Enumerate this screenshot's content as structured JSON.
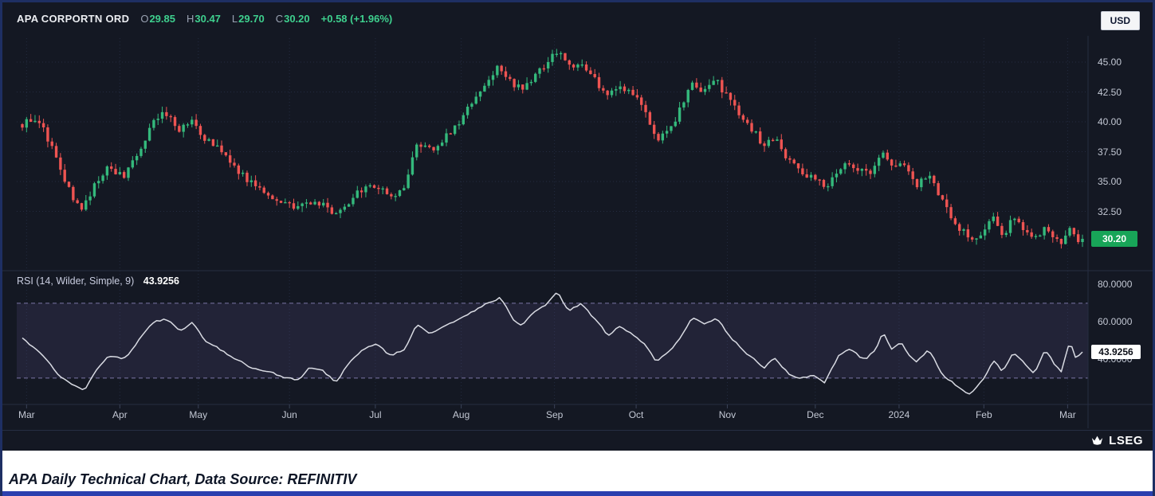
{
  "header": {
    "ticker": "APA CORPORTN ORD",
    "ohlc": [
      {
        "k": "O",
        "v": "29.85"
      },
      {
        "k": "H",
        "v": "30.47"
      },
      {
        "k": "L",
        "v": "29.70"
      },
      {
        "k": "C",
        "v": "30.20"
      }
    ],
    "change": "+0.58 (+1.96%)",
    "currency": "USD"
  },
  "rsi_header": {
    "label": "RSI (14, Wilder, Simple, 9)",
    "value": "43.9256"
  },
  "footer": {
    "brand": "LSEG"
  },
  "caption": "APA Daily Technical Chart, Data Source: REFINITIV",
  "chart_data": {
    "type": "candlestick",
    "title": "APA CORPORTN ORD daily OHLC with RSI(14, Wilder, Simple, 9)",
    "x": {
      "start": "Mar 2023",
      "end": "Mar 2024",
      "labels": [
        {
          "t": "Mar",
          "f": 0.004
        },
        {
          "t": "Apr",
          "f": 0.092
        },
        {
          "t": "May",
          "f": 0.166
        },
        {
          "t": "Jun",
          "f": 0.252
        },
        {
          "t": "Jul",
          "f": 0.333
        },
        {
          "t": "Aug",
          "f": 0.414
        },
        {
          "t": "Sep",
          "f": 0.502
        },
        {
          "t": "Oct",
          "f": 0.579
        },
        {
          "t": "Nov",
          "f": 0.665
        },
        {
          "t": "Dec",
          "f": 0.748
        },
        {
          "t": "2024",
          "f": 0.827
        },
        {
          "t": "Feb",
          "f": 0.907
        },
        {
          "t": "Mar",
          "f": 0.986
        }
      ]
    },
    "price_panel": {
      "ylim": [
        27.8,
        46.8
      ],
      "yticks": [
        {
          "t": "45.00",
          "v": 45
        },
        {
          "t": "42.50",
          "v": 42.5
        },
        {
          "t": "40.00",
          "v": 40
        },
        {
          "t": "37.50",
          "v": 37.5
        },
        {
          "t": "35.00",
          "v": 35
        },
        {
          "t": "32.50",
          "v": 32.5
        }
      ],
      "last": {
        "t": "30.20",
        "v": 30.2
      },
      "candle_count": 251,
      "close_anchors": [
        [
          0.0,
          39.8
        ],
        [
          0.01,
          40.4
        ],
        [
          0.022,
          39.0
        ],
        [
          0.034,
          36.6
        ],
        [
          0.046,
          33.8
        ],
        [
          0.056,
          32.8
        ],
        [
          0.068,
          34.6
        ],
        [
          0.08,
          36.2
        ],
        [
          0.095,
          35.4
        ],
        [
          0.11,
          37.4
        ],
        [
          0.125,
          40.2
        ],
        [
          0.135,
          40.8
        ],
        [
          0.148,
          39.4
        ],
        [
          0.16,
          40.3
        ],
        [
          0.17,
          38.6
        ],
        [
          0.185,
          37.8
        ],
        [
          0.2,
          36.2
        ],
        [
          0.215,
          34.9
        ],
        [
          0.23,
          34.0
        ],
        [
          0.245,
          33.3
        ],
        [
          0.258,
          32.6
        ],
        [
          0.27,
          33.4
        ],
        [
          0.283,
          33.0
        ],
        [
          0.297,
          32.0
        ],
        [
          0.31,
          33.6
        ],
        [
          0.322,
          34.3
        ],
        [
          0.335,
          34.6
        ],
        [
          0.348,
          33.9
        ],
        [
          0.36,
          34.4
        ],
        [
          0.372,
          37.9
        ],
        [
          0.385,
          37.6
        ],
        [
          0.398,
          38.6
        ],
        [
          0.412,
          39.9
        ],
        [
          0.425,
          41.8
        ],
        [
          0.438,
          43.5
        ],
        [
          0.45,
          44.6
        ],
        [
          0.462,
          43.2
        ],
        [
          0.472,
          42.6
        ],
        [
          0.483,
          43.8
        ],
        [
          0.495,
          44.9
        ],
        [
          0.505,
          46.0
        ],
        [
          0.515,
          44.6
        ],
        [
          0.528,
          44.9
        ],
        [
          0.54,
          43.6
        ],
        [
          0.552,
          42.1
        ],
        [
          0.563,
          43.2
        ],
        [
          0.575,
          42.4
        ],
        [
          0.588,
          41.0
        ],
        [
          0.598,
          38.6
        ],
        [
          0.61,
          39.4
        ],
        [
          0.622,
          41.2
        ],
        [
          0.632,
          43.2
        ],
        [
          0.643,
          42.6
        ],
        [
          0.655,
          43.4
        ],
        [
          0.665,
          42.0
        ],
        [
          0.678,
          40.6
        ],
        [
          0.69,
          39.2
        ],
        [
          0.7,
          38.0
        ],
        [
          0.71,
          38.8
        ],
        [
          0.722,
          36.9
        ],
        [
          0.733,
          35.8
        ],
        [
          0.745,
          35.4
        ],
        [
          0.757,
          34.5
        ],
        [
          0.77,
          36.2
        ],
        [
          0.782,
          36.4
        ],
        [
          0.795,
          35.6
        ],
        [
          0.805,
          36.1
        ],
        [
          0.812,
          37.6
        ],
        [
          0.82,
          36.3
        ],
        [
          0.83,
          36.6
        ],
        [
          0.843,
          34.7
        ],
        [
          0.855,
          35.6
        ],
        [
          0.868,
          33.2
        ],
        [
          0.88,
          31.6
        ],
        [
          0.893,
          30.2
        ],
        [
          0.907,
          30.8
        ],
        [
          0.916,
          31.9
        ],
        [
          0.925,
          30.6
        ],
        [
          0.935,
          31.9
        ],
        [
          0.945,
          31.0
        ],
        [
          0.955,
          30.0
        ],
        [
          0.965,
          31.5
        ],
        [
          0.973,
          30.3
        ],
        [
          0.98,
          29.8
        ],
        [
          0.988,
          31.2
        ],
        [
          0.994,
          29.9
        ],
        [
          1.0,
          30.2
        ]
      ]
    },
    "rsi_panel": {
      "ylim": [
        18,
        84
      ],
      "yticks": [
        {
          "t": "80.0000",
          "v": 80
        },
        {
          "t": "60.0000",
          "v": 60
        },
        {
          "t": "40.0000",
          "v": 40
        }
      ],
      "bands": [
        30,
        70
      ],
      "last": {
        "t": "43.9256",
        "v": 43.9256
      },
      "anchors": [
        [
          0.0,
          52
        ],
        [
          0.015,
          45
        ],
        [
          0.03,
          35
        ],
        [
          0.046,
          26
        ],
        [
          0.058,
          24
        ],
        [
          0.07,
          34
        ],
        [
          0.082,
          42
        ],
        [
          0.095,
          40
        ],
        [
          0.11,
          50
        ],
        [
          0.125,
          60
        ],
        [
          0.135,
          62
        ],
        [
          0.148,
          55
        ],
        [
          0.16,
          60
        ],
        [
          0.172,
          50
        ],
        [
          0.185,
          46
        ],
        [
          0.2,
          40
        ],
        [
          0.215,
          36
        ],
        [
          0.23,
          33
        ],
        [
          0.245,
          31
        ],
        [
          0.258,
          28
        ],
        [
          0.27,
          35
        ],
        [
          0.283,
          33
        ],
        [
          0.297,
          28
        ],
        [
          0.31,
          40
        ],
        [
          0.322,
          46
        ],
        [
          0.335,
          48
        ],
        [
          0.348,
          42
        ],
        [
          0.36,
          46
        ],
        [
          0.372,
          58
        ],
        [
          0.385,
          54
        ],
        [
          0.398,
          58
        ],
        [
          0.412,
          62
        ],
        [
          0.425,
          66
        ],
        [
          0.438,
          70
        ],
        [
          0.45,
          73
        ],
        [
          0.462,
          62
        ],
        [
          0.472,
          58
        ],
        [
          0.483,
          65
        ],
        [
          0.495,
          70
        ],
        [
          0.505,
          76
        ],
        [
          0.515,
          66
        ],
        [
          0.528,
          70
        ],
        [
          0.54,
          62
        ],
        [
          0.552,
          52
        ],
        [
          0.563,
          58
        ],
        [
          0.575,
          54
        ],
        [
          0.588,
          48
        ],
        [
          0.598,
          38
        ],
        [
          0.61,
          44
        ],
        [
          0.622,
          52
        ],
        [
          0.632,
          62
        ],
        [
          0.643,
          58
        ],
        [
          0.655,
          62
        ],
        [
          0.665,
          54
        ],
        [
          0.678,
          46
        ],
        [
          0.69,
          40
        ],
        [
          0.7,
          35
        ],
        [
          0.71,
          40
        ],
        [
          0.722,
          32
        ],
        [
          0.733,
          30
        ],
        [
          0.745,
          31
        ],
        [
          0.757,
          28
        ],
        [
          0.77,
          42
        ],
        [
          0.782,
          45
        ],
        [
          0.795,
          40
        ],
        [
          0.805,
          44
        ],
        [
          0.812,
          55
        ],
        [
          0.82,
          46
        ],
        [
          0.83,
          48
        ],
        [
          0.843,
          38
        ],
        [
          0.855,
          45
        ],
        [
          0.868,
          32
        ],
        [
          0.88,
          26
        ],
        [
          0.893,
          21
        ],
        [
          0.907,
          30
        ],
        [
          0.916,
          40
        ],
        [
          0.925,
          34
        ],
        [
          0.935,
          44
        ],
        [
          0.945,
          38
        ],
        [
          0.955,
          32
        ],
        [
          0.965,
          46
        ],
        [
          0.973,
          38
        ],
        [
          0.98,
          34
        ],
        [
          0.988,
          50
        ],
        [
          0.994,
          40
        ],
        [
          1.0,
          43.93
        ]
      ]
    },
    "colors": {
      "up": "#34b97c",
      "down": "#ee5452",
      "rsi_line": "#d9dbe3",
      "band": "rgba(118,108,178,0.14)",
      "band_line": "#7b76a6",
      "badge_up_bg": "#18a558",
      "background": "#141823",
      "accent_bottom_bar": "#2b3fae"
    }
  }
}
